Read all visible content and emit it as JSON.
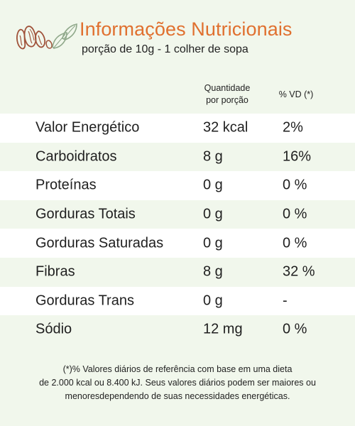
{
  "header": {
    "title": "Informações Nutricionais",
    "subtitle": "porção de 10g - 1 colher de sopa"
  },
  "columns": {
    "quantity_line1": "Quantidade",
    "quantity_line2": "por porção",
    "daily_value": "% VD (*)"
  },
  "rows": [
    {
      "name": "Valor Energético",
      "quantity": "32 kcal",
      "dv": "2%"
    },
    {
      "name": "Carboidratos",
      "quantity": "8 g",
      "dv": "16%"
    },
    {
      "name": "Proteínas",
      "quantity": "0 g",
      "dv": "0 %"
    },
    {
      "name": "Gorduras Totais",
      "quantity": "0 g",
      "dv": "0 %"
    },
    {
      "name": "Gorduras Saturadas",
      "quantity": "0 g",
      "dv": "0 %"
    },
    {
      "name": "Fibras",
      "quantity": "8 g",
      "dv": "32 %"
    },
    {
      "name": "Gorduras Trans",
      "quantity": "0 g",
      "dv": "-"
    },
    {
      "name": "Sódio",
      "quantity": "12 mg",
      "dv": "0 %"
    }
  ],
  "footnote": {
    "line1": "(*)% Valores diários de referência com base em uma dieta",
    "line2": "de 2.000 kcal ou 8.400 kJ. Seus valores diários podem ser maiores ou",
    "line3": "menoresdependendo de suas necessidades energéticas."
  },
  "colors": {
    "title": "#e0702f",
    "background": "#f1f7ec",
    "row_alt": "#ffffff",
    "logo_brown": "#a0523a",
    "leaf_green": "#8fa88a"
  },
  "icons": {
    "logo": "nuts-and-leaves-icon"
  }
}
